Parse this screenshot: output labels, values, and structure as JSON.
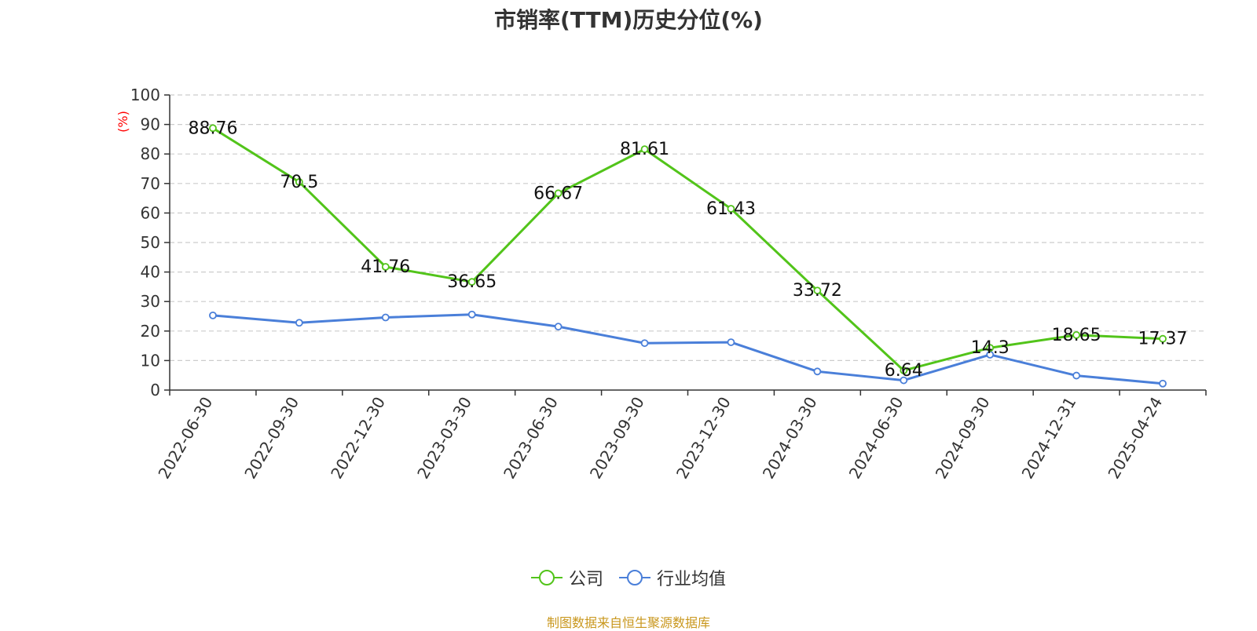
{
  "title": "市销率(TTM)历史分位(%)",
  "source_note": "制图数据来自恒生聚源数据库",
  "colors": {
    "company": "#52c41a",
    "industry": "#4a7fd9",
    "ylabel": "#ff0000",
    "grid": "#cccccc",
    "axis": "#333333"
  },
  "chart_data": {
    "type": "line",
    "title": "市销率(TTM)历史分位(%)",
    "ylabel": "(%)",
    "ylim": [
      0,
      100
    ],
    "yticks": [
      0,
      10,
      20,
      30,
      40,
      50,
      60,
      70,
      80,
      90,
      100
    ],
    "grid": true,
    "legend_position": "bottom",
    "categories": [
      "2022-06-30",
      "2022-09-30",
      "2022-12-30",
      "2023-03-30",
      "2023-06-30",
      "2023-09-30",
      "2023-12-30",
      "2024-03-30",
      "2024-06-30",
      "2024-09-30",
      "2024-12-31",
      "2025-04-24"
    ],
    "series": [
      {
        "name": "公司",
        "values": [
          88.76,
          70.5,
          41.76,
          36.65,
          66.67,
          81.61,
          61.43,
          33.72,
          6.64,
          14.3,
          18.65,
          17.37
        ],
        "labels": [
          "88.76",
          "70.5",
          "41.76",
          "36.65",
          "66.67",
          "81.61",
          "61.43",
          "33.72",
          "6.64",
          "14.3",
          "18.65",
          "17.37"
        ]
      },
      {
        "name": "行业均值",
        "values": [
          25.3,
          22.8,
          24.6,
          25.6,
          21.5,
          15.9,
          16.2,
          6.3,
          3.3,
          12.0,
          4.9,
          2.2
        ]
      }
    ]
  }
}
